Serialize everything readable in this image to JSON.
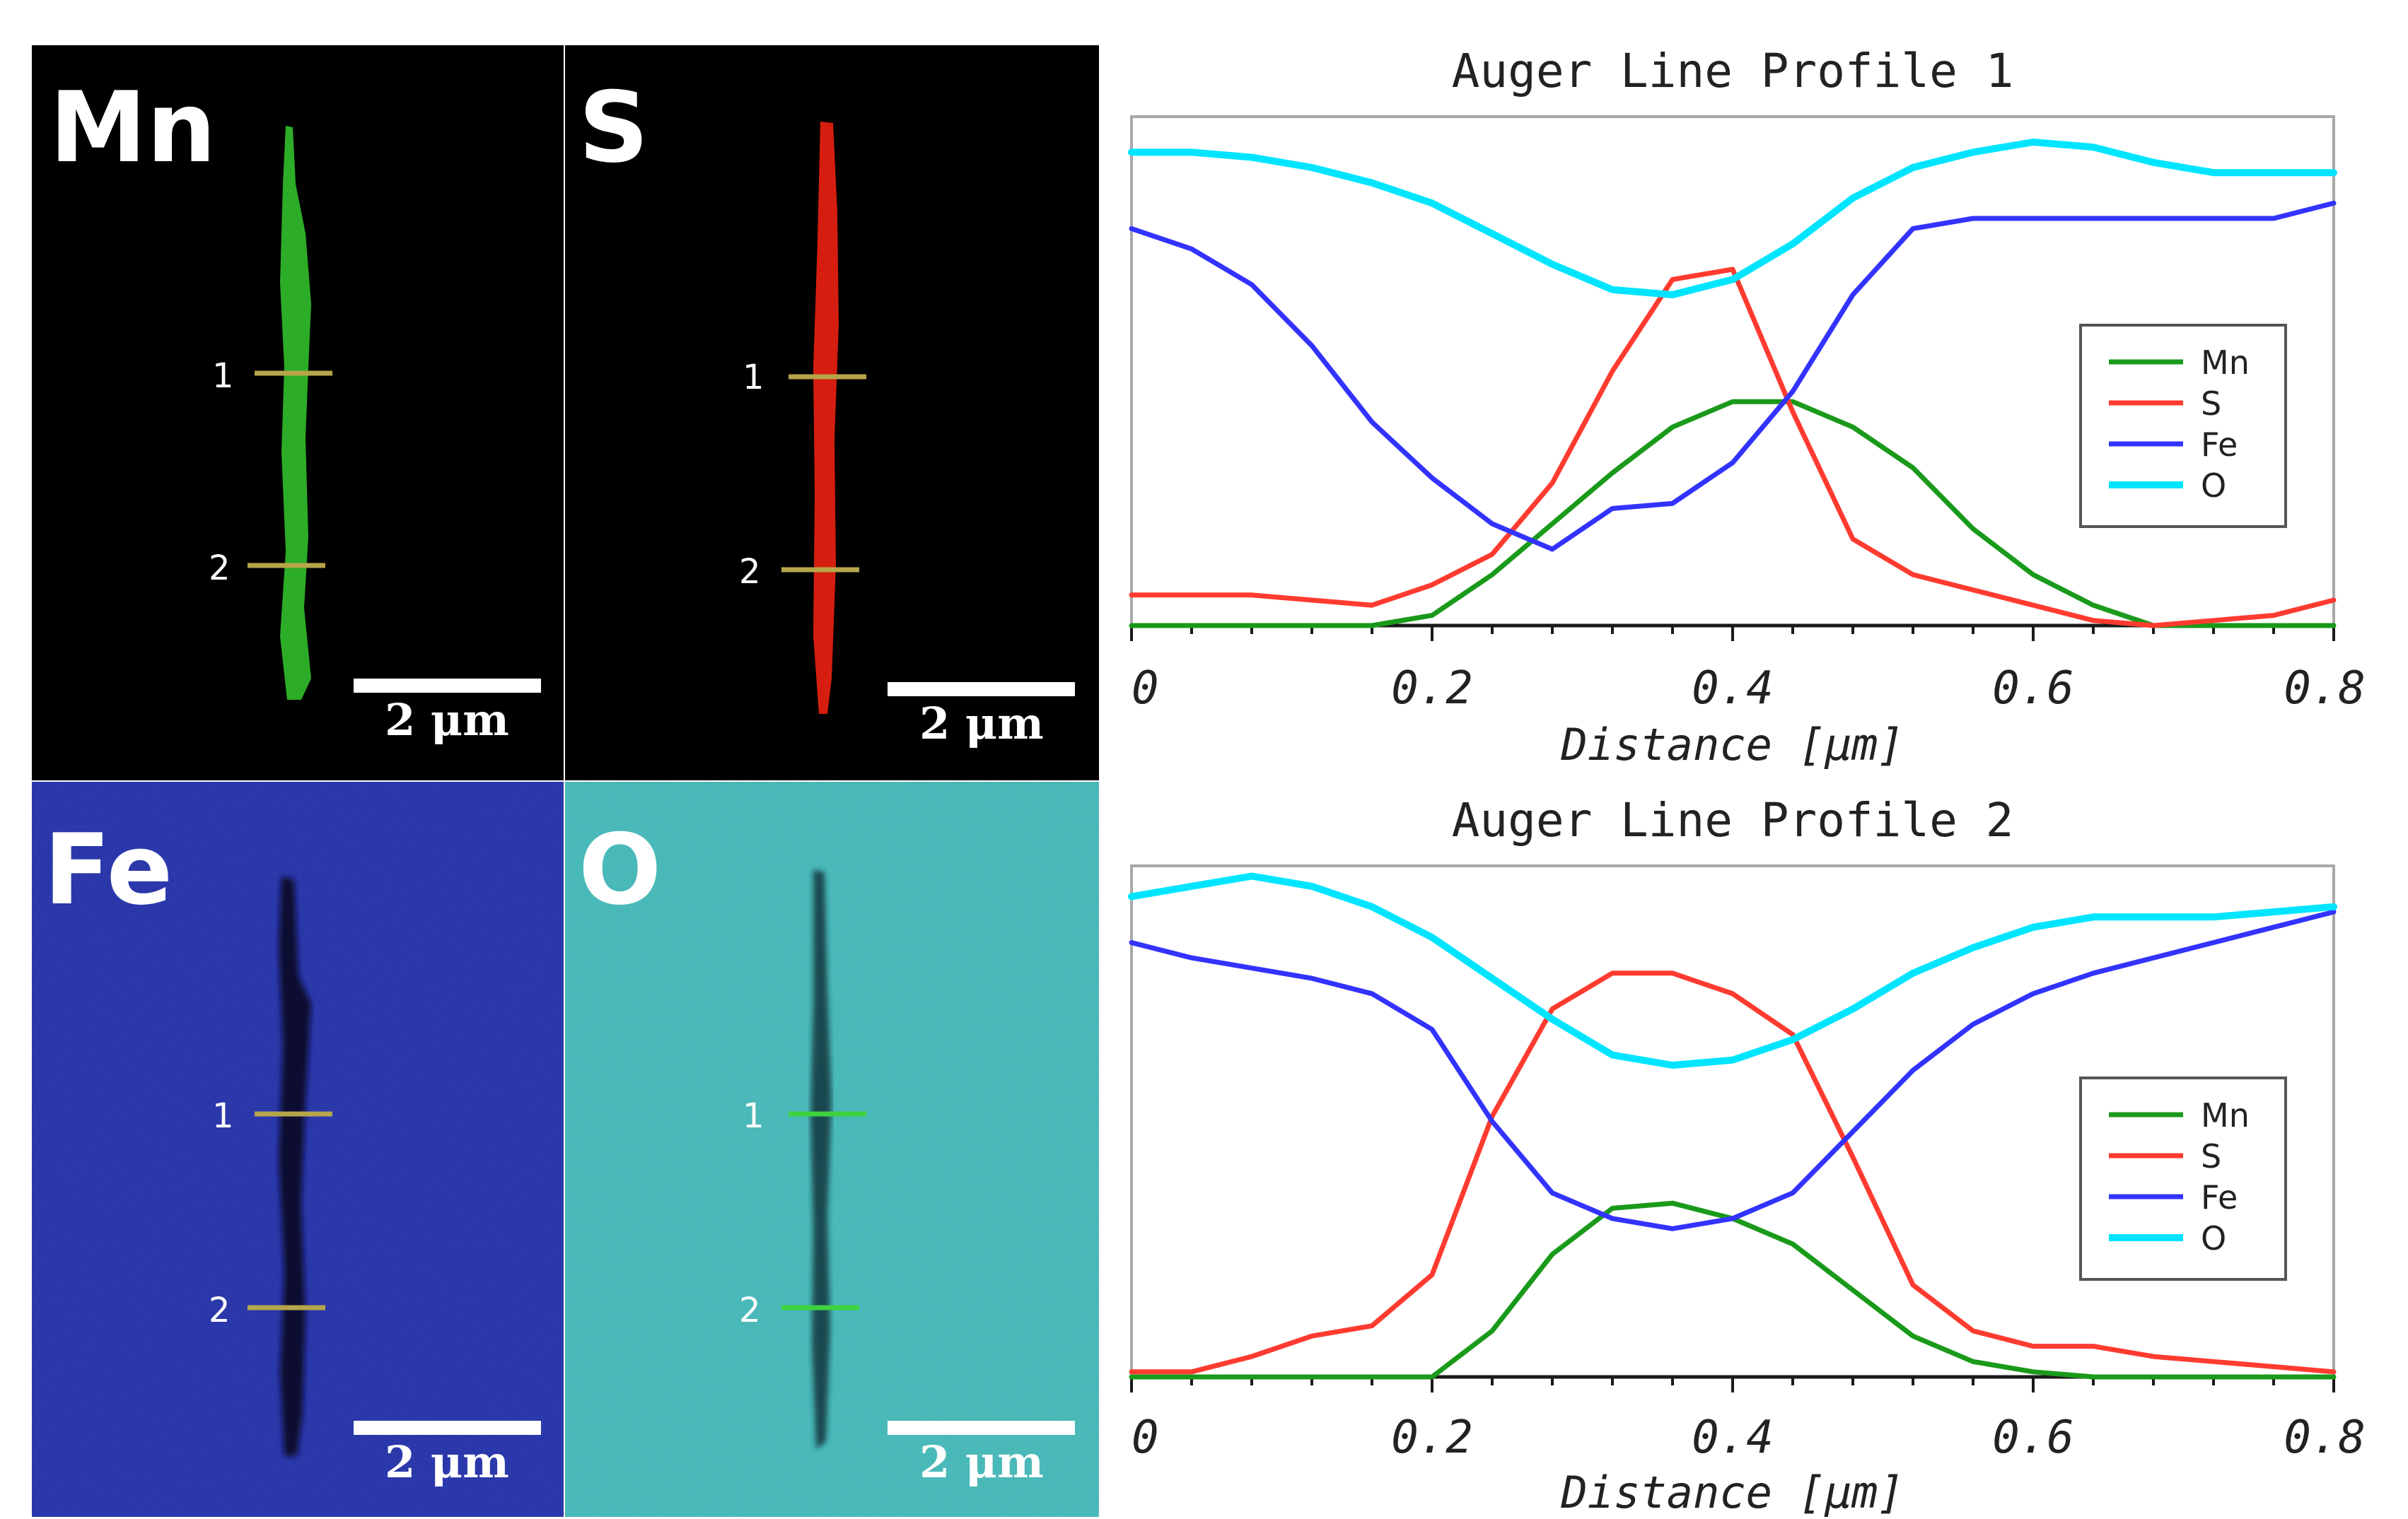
{
  "maps": [
    {
      "element": "Mn",
      "scalebar": "2 μm",
      "markers": [
        "1",
        "2"
      ],
      "bg": "#000000",
      "fg": "#2fb52a"
    },
    {
      "element": "S",
      "scalebar": "2 μm",
      "markers": [
        "1",
        "2"
      ],
      "bg": "#000000",
      "fg": "#e02010"
    },
    {
      "element": "Fe",
      "scalebar": "2 μm",
      "markers": [
        "1",
        "2"
      ],
      "bg": "#1423a8",
      "fg": "#0b0f33"
    },
    {
      "element": "O",
      "scalebar": "2 μm",
      "markers": [
        "1",
        "2"
      ],
      "bg": "#38b8b8",
      "fg": "#173e45"
    }
  ],
  "chart_data": [
    {
      "type": "line",
      "title": "Auger Line Profile 1",
      "xlabel": "Distance [μm]",
      "ylabel": "",
      "xlim": [
        0,
        0.8
      ],
      "ylim": [
        0,
        1
      ],
      "xticks": [
        "0",
        "0.2",
        "0.4",
        "0.6",
        "0.8"
      ],
      "legend_position": "right",
      "x": [
        0,
        0.04,
        0.08,
        0.12,
        0.16,
        0.2,
        0.24,
        0.28,
        0.32,
        0.36,
        0.4,
        0.44,
        0.48,
        0.52,
        0.56,
        0.6,
        0.64,
        0.68,
        0.72,
        0.76,
        0.8
      ],
      "series": [
        {
          "name": "Mn",
          "color": "#1a9a1a",
          "values": [
            0,
            0,
            0,
            0,
            0,
            0.02,
            0.1,
            0.2,
            0.3,
            0.39,
            0.44,
            0.44,
            0.39,
            0.31,
            0.19,
            0.1,
            0.04,
            0,
            0,
            0,
            0
          ]
        },
        {
          "name": "S",
          "color": "#ff3b30",
          "values": [
            0.06,
            0.06,
            0.06,
            0.05,
            0.04,
            0.08,
            0.14,
            0.28,
            0.5,
            0.68,
            0.7,
            0.42,
            0.17,
            0.1,
            0.07,
            0.04,
            0.01,
            0,
            0.01,
            0.02,
            0.05
          ]
        },
        {
          "name": "Fe",
          "color": "#3333ff",
          "values": [
            0.78,
            0.74,
            0.67,
            0.55,
            0.4,
            0.29,
            0.2,
            0.15,
            0.23,
            0.24,
            0.32,
            0.46,
            0.65,
            0.78,
            0.8,
            0.8,
            0.8,
            0.8,
            0.8,
            0.8,
            0.83
          ]
        },
        {
          "name": "O",
          "color": "#00e5ff",
          "values": [
            0.93,
            0.93,
            0.92,
            0.9,
            0.87,
            0.83,
            0.77,
            0.71,
            0.66,
            0.65,
            0.68,
            0.75,
            0.84,
            0.9,
            0.93,
            0.95,
            0.94,
            0.91,
            0.89,
            0.89,
            0.89
          ]
        }
      ]
    },
    {
      "type": "line",
      "title": "Auger Line Profile 2",
      "xlabel": "Distance [μm]",
      "ylabel": "",
      "xlim": [
        0,
        0.8
      ],
      "ylim": [
        0,
        1
      ],
      "xticks": [
        "0",
        "0.2",
        "0.4",
        "0.6",
        "0.8"
      ],
      "legend_position": "right",
      "x": [
        0,
        0.04,
        0.08,
        0.12,
        0.16,
        0.2,
        0.24,
        0.28,
        0.32,
        0.36,
        0.4,
        0.44,
        0.48,
        0.52,
        0.56,
        0.6,
        0.64,
        0.68,
        0.72,
        0.76,
        0.8
      ],
      "series": [
        {
          "name": "Mn",
          "color": "#1a9a1a",
          "values": [
            0,
            0,
            0,
            0,
            0,
            0,
            0.09,
            0.24,
            0.33,
            0.34,
            0.31,
            0.26,
            0.17,
            0.08,
            0.03,
            0.01,
            0,
            0,
            0,
            0,
            0
          ]
        },
        {
          "name": "S",
          "color": "#ff3b30",
          "values": [
            0.01,
            0.01,
            0.04,
            0.08,
            0.1,
            0.2,
            0.51,
            0.72,
            0.79,
            0.79,
            0.75,
            0.67,
            0.43,
            0.18,
            0.09,
            0.06,
            0.06,
            0.04,
            0.03,
            0.02,
            0.01
          ]
        },
        {
          "name": "Fe",
          "color": "#3333ff",
          "values": [
            0.85,
            0.82,
            0.8,
            0.78,
            0.75,
            0.68,
            0.5,
            0.36,
            0.31,
            0.29,
            0.31,
            0.36,
            0.48,
            0.6,
            0.69,
            0.75,
            0.79,
            0.82,
            0.85,
            0.88,
            0.91
          ]
        },
        {
          "name": "O",
          "color": "#00e5ff",
          "values": [
            0.94,
            0.96,
            0.98,
            0.96,
            0.92,
            0.86,
            0.78,
            0.7,
            0.63,
            0.61,
            0.62,
            0.66,
            0.72,
            0.79,
            0.84,
            0.88,
            0.9,
            0.9,
            0.9,
            0.91,
            0.92
          ]
        }
      ]
    }
  ]
}
